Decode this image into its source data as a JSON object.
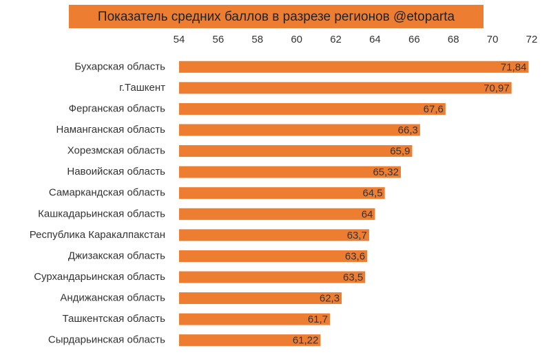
{
  "chart_data": {
    "type": "hbar",
    "title": "Показатель средних баллов в разрезе регионов @etoparta",
    "categories": [
      "Бухарская область",
      "г.Ташкент",
      "Ферганская область",
      "Наманганская область",
      "Хорезмская область",
      "Навоийская область",
      "Самаркандская область",
      "Кашкадарьинская область",
      "Республика Каракалпакстан",
      "Джизакская область",
      "Сурхандарьинская область",
      "Андижанская область",
      "Ташкентская область",
      "Сырдарьинская область"
    ],
    "values": [
      71.84,
      70.97,
      67.6,
      66.3,
      65.9,
      65.32,
      64.5,
      64,
      63.7,
      63.6,
      63.5,
      62.3,
      61.7,
      61.22
    ],
    "value_labels": [
      "71,84",
      "70,97",
      "67,6",
      "66,3",
      "65,9",
      "65,32",
      "64,5",
      "64",
      "63,7",
      "63,6",
      "63,5",
      "62,3",
      "61,7",
      "61,22"
    ],
    "color": "#ed7d31",
    "xlim": [
      54,
      72
    ],
    "xticks": [
      54,
      56,
      58,
      60,
      62,
      64,
      66,
      68,
      70,
      72
    ]
  }
}
